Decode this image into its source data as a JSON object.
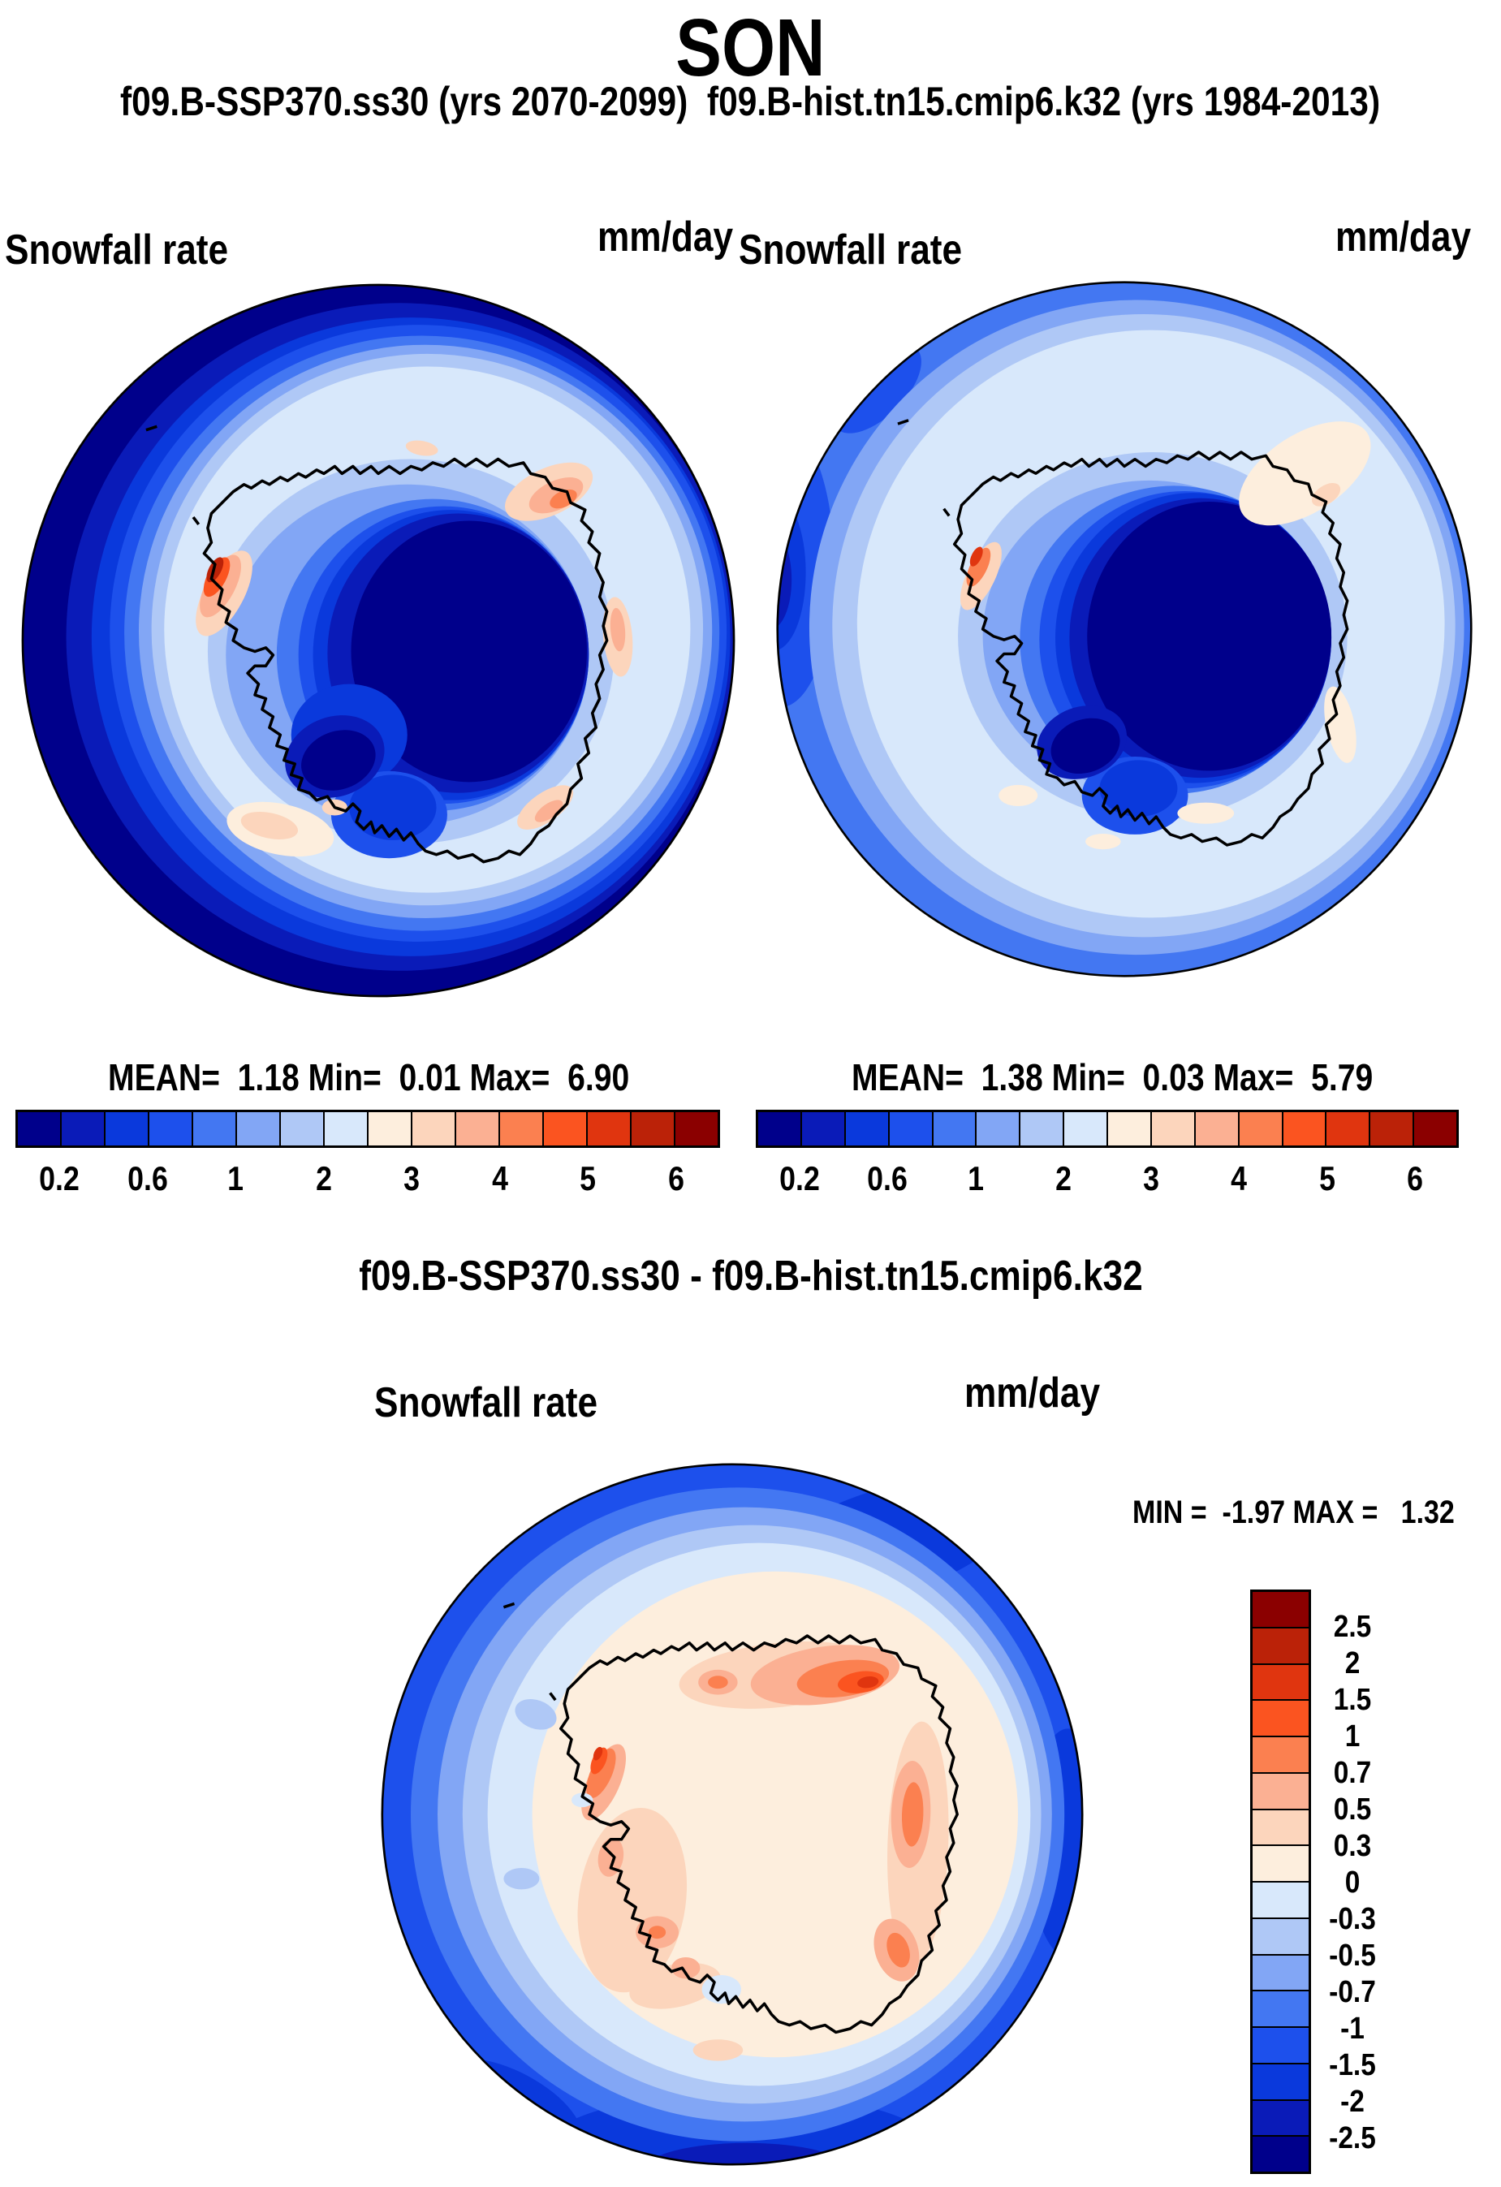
{
  "season_title": "SON",
  "subtitle": "f09.B-SSP370.ss30 (yrs 2070-2099)  f09.B-hist.tn15.cmip6.k32 (yrs 1984-2013)",
  "panels": {
    "left": {
      "field_label": "Snowfall rate",
      "units": "mm/day",
      "stats_line": "MEAN=  1.18 Min=  0.01 Max=  6.90"
    },
    "right": {
      "field_label": "Snowfall rate",
      "units": "mm/day",
      "stats_line": "MEAN=  1.38 Min=  0.03 Max=  5.79"
    },
    "diff": {
      "section_title": "f09.B-SSP370.ss30 - f09.B-hist.tn15.cmip6.k32",
      "field_label": "Snowfall rate",
      "units": "mm/day",
      "stats_line": "MIN =  -1.97 MAX =   1.32"
    }
  },
  "snowfall_colorbar": {
    "tick_labels": [
      "0.2",
      "0.6",
      "1",
      "2",
      "3",
      "4",
      "5",
      "6"
    ],
    "levels": [
      0.2,
      0.4,
      0.6,
      0.8,
      1,
      1.5,
      2,
      2.5,
      3,
      3.5,
      4,
      4.5,
      5,
      5.5,
      6
    ],
    "cell_colors": [
      "#00008B",
      "#0A1BB8",
      "#0A39DC",
      "#1D50EC",
      "#4377F2",
      "#82A6F5",
      "#AFC8F6",
      "#D8E8FB",
      "#FDEEDD",
      "#FCD5BC",
      "#FBB093",
      "#FB8050",
      "#FB5420",
      "#E0350F",
      "#BB2208",
      "#8B0000"
    ]
  },
  "diff_colorbar": {
    "tick_labels": [
      "2.5",
      "2",
      "1.5",
      "1",
      "0.7",
      "0.5",
      "0.3",
      "0",
      "-0.3",
      "-0.5",
      "-0.7",
      "-1",
      "-1.5",
      "-2",
      "-2.5"
    ],
    "levels": [
      -2.5,
      -2,
      -1.5,
      -1,
      -0.7,
      -0.5,
      -0.3,
      0,
      0.3,
      0.5,
      0.7,
      1,
      1.5,
      2,
      2.5
    ],
    "cell_colors": [
      "#8B0000",
      "#BB2208",
      "#E0350F",
      "#FB5420",
      "#FB8050",
      "#FBB093",
      "#FCD5BC",
      "#FDEEDD",
      "#D8E8FB",
      "#AFC8F6",
      "#82A6F5",
      "#4377F2",
      "#1D50EC",
      "#0A39DC",
      "#0A1BB8",
      "#00008B"
    ]
  },
  "chart_data": [
    {
      "type": "heatmap",
      "subtype": "south_polar_stereographic_contour_map",
      "panel": "top_left",
      "title": "Snowfall rate",
      "units": "mm/day",
      "case": "f09.B-SSP370.ss30",
      "period": "yrs 2070-2099",
      "season": "SON",
      "stats": {
        "mean": 1.18,
        "min": 0.01,
        "max": 6.9
      },
      "contour_levels": [
        0.2,
        0.4,
        0.6,
        0.8,
        1,
        1.5,
        2,
        2.5,
        3,
        3.5,
        4,
        4.5,
        5,
        5.5,
        6
      ],
      "palette": "16-class blue-white-red",
      "legend_position": "below",
      "description": "Antarctica map: dark-navy minimum (<0.2 mm/day) over East Antarctic interior, wide dark-blue high-value ring (>6) at outer rim strongest on west side, pale-blue mid-ocean band (~1-2), red/orange maxima (3-6+) along Antarctic Peninsula and localized coastal spots"
    },
    {
      "type": "heatmap",
      "subtype": "south_polar_stereographic_contour_map",
      "panel": "top_right",
      "title": "Snowfall rate",
      "units": "mm/day",
      "case": "f09.B-hist.tn15.cmip6.k32",
      "period": "yrs 1984-2013",
      "season": "SON",
      "stats": {
        "mean": 1.38,
        "min": 0.03,
        "max": 5.79
      },
      "contour_levels": [
        0.2,
        0.4,
        0.6,
        0.8,
        1,
        1.5,
        2,
        2.5,
        3,
        3.5,
        4,
        4.5,
        5,
        5.5,
        6
      ],
      "palette": "16-class blue-white-red",
      "legend_position": "below",
      "description": "Historical run: lighter ocean ring (mostly 2-3 mm/day), broad pale-blue band, dark navy only at far-left rim, dark continental interior minimum, small peninsula maximum and pale peach patches upper-right"
    },
    {
      "type": "heatmap",
      "subtype": "south_polar_stereographic_contour_difference_map",
      "panel": "bottom",
      "title": "f09.B-SSP370.ss30 - f09.B-hist.tn15.cmip6.k32",
      "variable": "Snowfall rate difference",
      "units": "mm/day",
      "season": "SON",
      "stats": {
        "min": -1.97,
        "max": 1.32
      },
      "contour_levels": [
        -2.5,
        -2,
        -1.5,
        -1,
        -0.7,
        -0.5,
        -0.3,
        0,
        0.3,
        0.5,
        0.7,
        1,
        1.5,
        2,
        2.5
      ],
      "palette": "16-class red-white-blue (vertical legend right)",
      "legend_position": "right",
      "description": "Difference map: positive (cream/peach/orange, up to ~1.3) over the continent with strongest increase along northeast coast and Antarctic Peninsula; negative (blue ring, down to ~-2) over surrounding Southern Ocean"
    }
  ]
}
